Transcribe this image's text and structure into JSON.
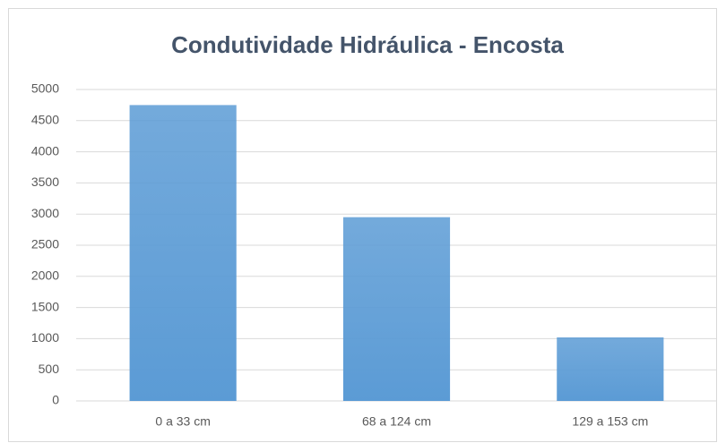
{
  "chart_data": {
    "type": "bar",
    "title": "Condutividade Hidráulica - Encosta",
    "categories": [
      "0 a 33 cm",
      "68 a 124 cm",
      "129 a 153 cm"
    ],
    "values": [
      4750,
      2950,
      1020
    ],
    "color": "#5b9bd5",
    "ylim": [
      0,
      5000
    ],
    "yticks": [
      0,
      500,
      1000,
      1500,
      2000,
      2500,
      3000,
      3500,
      4000,
      4500,
      5000
    ],
    "grid": true
  }
}
